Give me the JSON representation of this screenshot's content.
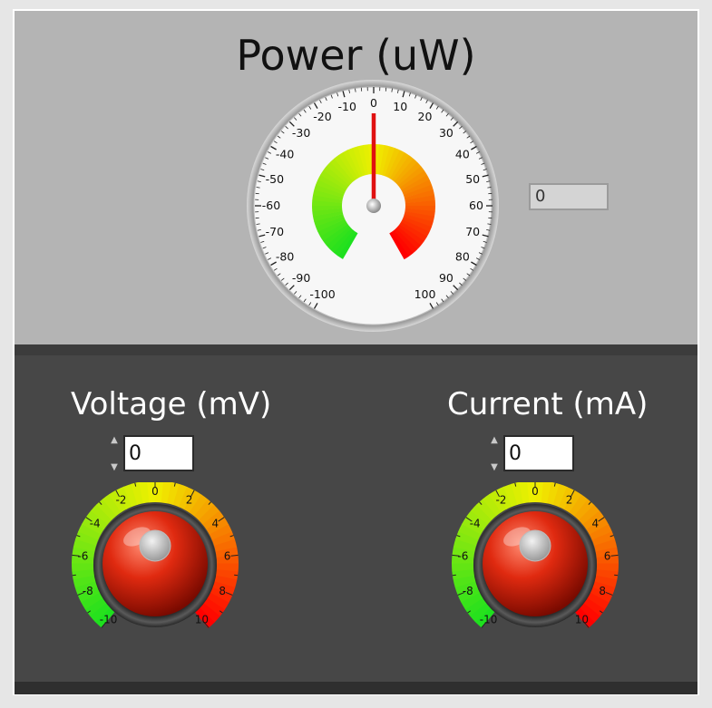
{
  "power": {
    "title": "Power (uW)",
    "indicator_value": "0",
    "gauge_value": 0,
    "scale_labels": [
      "-100",
      "-90",
      "-80",
      "-70",
      "-60",
      "-50",
      "-40",
      "-30",
      "-20",
      "-10",
      "0",
      "10",
      "20",
      "30",
      "40",
      "50",
      "60",
      "70",
      "80",
      "90",
      "100"
    ]
  },
  "voltage": {
    "label": "Voltage (mV)",
    "value": "0",
    "scale_labels": [
      "-10",
      "-8",
      "-6",
      "-4",
      "-2",
      "0",
      "2",
      "4",
      "6",
      "8",
      "10"
    ]
  },
  "current": {
    "label": "Current (mA)",
    "value": "0",
    "scale_labels": [
      "-10",
      "-8",
      "-6",
      "-4",
      "-2",
      "0",
      "2",
      "4",
      "6",
      "8",
      "10"
    ]
  },
  "colors": {
    "needle": "#e01010",
    "knob": "#e02a10",
    "scale_low": "#1ee01e",
    "scale_mid": "#f0f000",
    "scale_high": "#ff0000"
  }
}
